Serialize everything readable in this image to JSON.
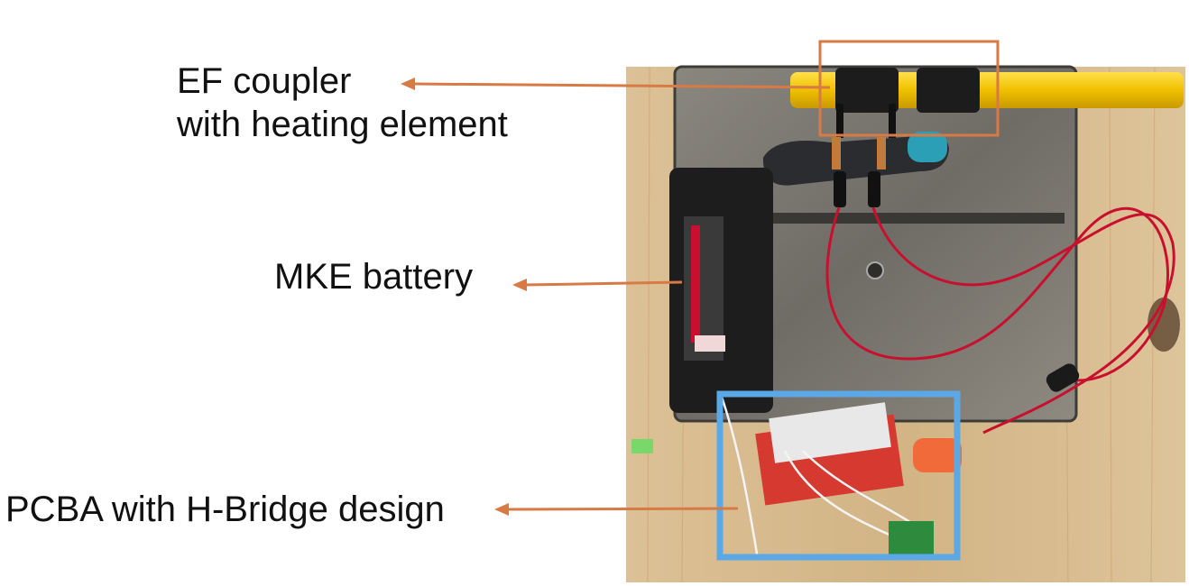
{
  "labels": {
    "coupler_line1": "EF coupler",
    "coupler_line2": "with heating element",
    "battery": "MKE battery",
    "pcba": "PCBA with H-Bridge design"
  },
  "colors": {
    "arrow": "#d77a45",
    "coupler_box": "#d77a45",
    "pcba_box": "#5aa9e6",
    "pipe_yellow": "#f2c200",
    "wire_red": "#c8102e",
    "board_red": "#d6392f",
    "table_wood": "#d8bc8c",
    "steel_plate": "#7d7a73"
  },
  "icons": {
    "arrow_head": "arrow-left-icon"
  }
}
